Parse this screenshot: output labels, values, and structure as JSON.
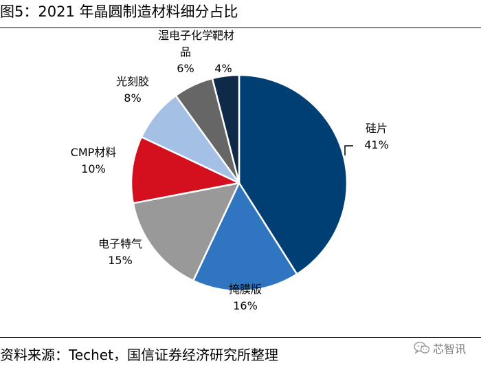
{
  "figure": {
    "title": "图5：2021 年晶圆制造材料细分占比",
    "source": "资料来源：Techet，国信证券经济研究所整理",
    "watermark": "芯智讯"
  },
  "chart_data": {
    "type": "pie",
    "start": "12 o'clock",
    "direction": "clockwise",
    "slices": [
      {
        "label": "硅片",
        "value": 41,
        "display": "41%",
        "color": "#003f74"
      },
      {
        "label": "掩膜版",
        "value": 16,
        "display": "16%",
        "color": "#2f75c0"
      },
      {
        "label": "电子特气",
        "value": 15,
        "display": "15%",
        "color": "#999999"
      },
      {
        "label": "CMP材料",
        "value": 10,
        "display": "10%",
        "color": "#d4101e"
      },
      {
        "label": "光刻胶",
        "value": 8,
        "display": "8%",
        "color": "#a4c1e5"
      },
      {
        "label": "湿电子化学品",
        "value": 6,
        "display": "6%",
        "color": "#666666"
      },
      {
        "label": "靶材",
        "value": 4,
        "display": "4%",
        "color": "#0f2a49"
      }
    ]
  }
}
